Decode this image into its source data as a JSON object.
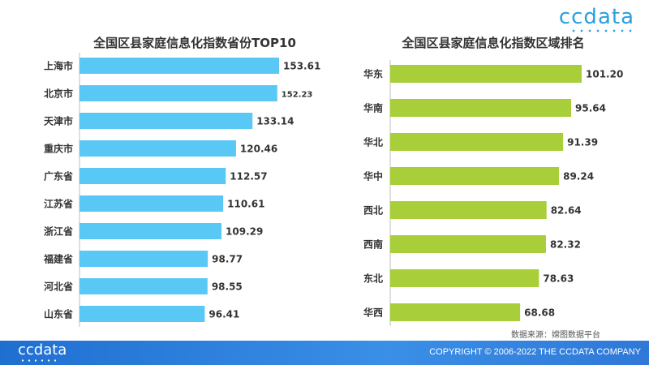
{
  "brand": {
    "logo": "ccdata"
  },
  "source": "数据来源：嫦图数据平台",
  "footer": {
    "logo": "ccdata",
    "copyright": "COPYRIGHT © 2006-2022  THE CCDATA COMPANY"
  },
  "colors": {
    "left_bar": "#5ac8f5",
    "right_bar": "#a8cf3a",
    "footer": "#2a82de",
    "brand": "#2b9fe0"
  },
  "chart_data": [
    {
      "type": "bar",
      "orientation": "horizontal",
      "title": "全国区县家庭信息化指数省份TOP10",
      "categories": [
        "上海市",
        "北京市",
        "天津市",
        "重庆市",
        "广东省",
        "江苏省",
        "浙江省",
        "福建省",
        "河北省",
        "山东省"
      ],
      "values": [
        153.61,
        152.23,
        133.14,
        120.46,
        112.57,
        110.61,
        109.29,
        98.77,
        98.55,
        96.41
      ],
      "labels": [
        "153.61",
        "152.23",
        "133.14",
        "120.46",
        "112.57",
        "110.61",
        "109.29",
        "98.77",
        "98.55",
        "96.41"
      ],
      "xlim": [
        0,
        160
      ],
      "grid": false
    },
    {
      "type": "bar",
      "orientation": "horizontal",
      "title": "全国区县家庭信息化指数区域排名",
      "categories": [
        "华东",
        "华南",
        "华北",
        "华中",
        "西北",
        "西南",
        "东北",
        "华西"
      ],
      "values": [
        101.2,
        95.64,
        91.39,
        89.24,
        82.64,
        82.32,
        78.63,
        68.68
      ],
      "labels": [
        "101.20",
        "95.64",
        "91.39",
        "89.24",
        "82.64",
        "82.32",
        "78.63",
        "68.68"
      ],
      "xlim": [
        0,
        105
      ],
      "grid": false
    }
  ]
}
